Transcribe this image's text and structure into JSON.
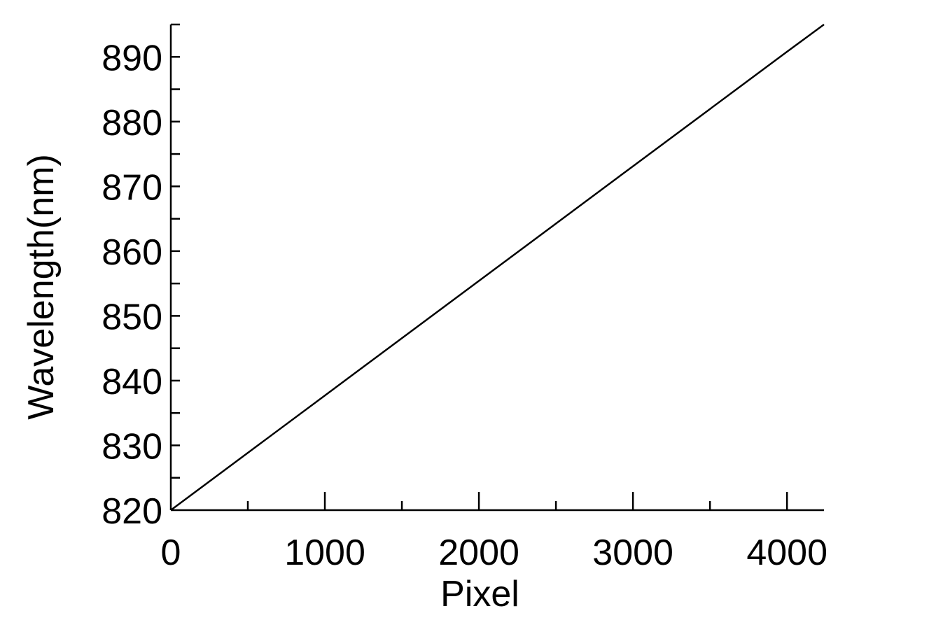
{
  "chart_data": {
    "type": "line",
    "title": "",
    "xlabel": "Pixel",
    "ylabel": "Wavelength(nm)",
    "xlim": [
      0,
      4240
    ],
    "ylim": [
      820,
      895
    ],
    "x_ticks": [
      0,
      1000,
      2000,
      3000,
      4000
    ],
    "x_tick_labels": [
      "0",
      "1000",
      "2000",
      "3000",
      "4000"
    ],
    "x_minor_ticks": [
      500,
      1500,
      2500,
      3500
    ],
    "y_ticks": [
      820,
      830,
      840,
      850,
      860,
      870,
      880,
      890
    ],
    "y_tick_labels": [
      "820",
      "830",
      "840",
      "850",
      "860",
      "870",
      "880",
      "890"
    ],
    "y_minor_ticks": [
      825,
      835,
      845,
      855,
      865,
      875,
      885,
      895
    ],
    "grid": false,
    "legend": "none",
    "colors": {
      "line": "#000000",
      "axis": "#000000"
    },
    "series": [
      {
        "x": [
          0,
          1000,
          2000,
          3000,
          4000,
          4240
        ],
        "y": [
          820,
          837.7,
          855.4,
          873.1,
          890.8,
          895
        ]
      }
    ]
  }
}
